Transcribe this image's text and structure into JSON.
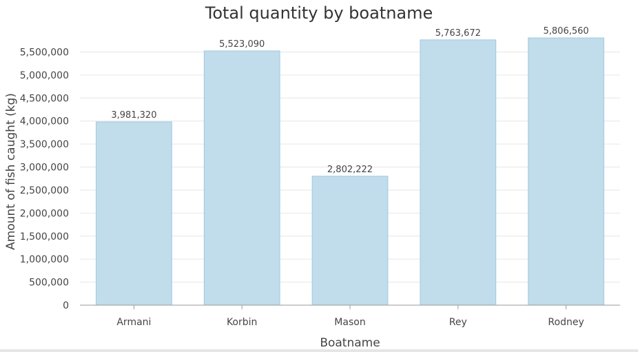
{
  "chart_data": {
    "type": "bar",
    "title": "Total quantity by boatname",
    "xlabel": "Boatname",
    "ylabel": "Amount of fish caught (kg)",
    "categories": [
      "Armani",
      "Korbin",
      "Mason",
      "Rey",
      "Rodney"
    ],
    "values": [
      3981320,
      5523090,
      2802222,
      5763672,
      5806560
    ],
    "value_labels": [
      "3,981,320",
      "5,523,090",
      "2,802,222",
      "5,763,672",
      "5,806,560"
    ],
    "ylim": [
      0,
      5806560
    ],
    "yticks": [
      0,
      500000,
      1000000,
      1500000,
      2000000,
      2500000,
      3000000,
      3500000,
      4000000,
      4500000,
      5000000,
      5500000
    ],
    "ytick_labels": [
      "0",
      "500,000",
      "1,000,000",
      "1,500,000",
      "2,000,000",
      "2,500,000",
      "3,000,000",
      "3,500,000",
      "4,000,000",
      "4,500,000",
      "5,000,000",
      "5,500,000"
    ],
    "grid": true,
    "legend": "none",
    "colors": {
      "bar_fill": "#c1dcea",
      "bar_stroke": "#9ccbe2",
      "grid": "#e6e6e6",
      "axis": "#999999"
    }
  }
}
